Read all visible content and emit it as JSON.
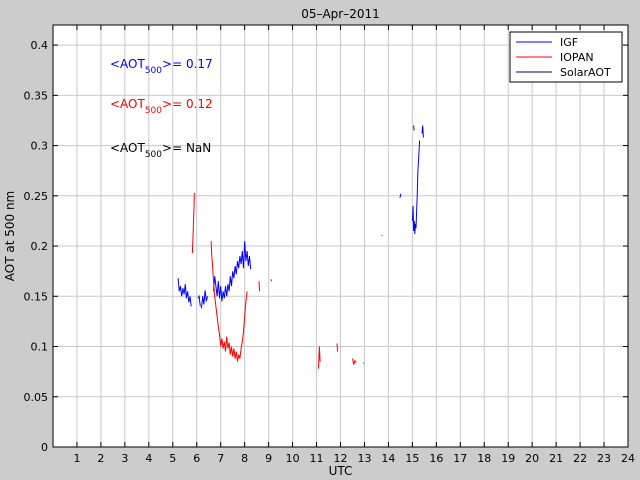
{
  "chart_data": {
    "type": "line",
    "title": "05–Apr–2011",
    "xlabel": "UTC",
    "ylabel": "AOT at 500 nm",
    "xlim": [
      0,
      24
    ],
    "ylim": [
      0,
      0.42
    ],
    "grid": true,
    "legend_position": "top-right",
    "xticks": [
      1,
      2,
      3,
      4,
      5,
      6,
      7,
      8,
      9,
      10,
      11,
      12,
      13,
      14,
      15,
      16,
      17,
      18,
      19,
      20,
      21,
      22,
      23,
      24
    ],
    "xtick_labels": [
      "1",
      "2",
      "3",
      "4",
      "5",
      "6",
      "7",
      "8",
      "9",
      "10",
      "11",
      "12",
      "13",
      "14",
      "15",
      "16",
      "17",
      "18",
      "19",
      "20",
      "21",
      "22",
      "23",
      "24"
    ],
    "yticks": [
      0,
      0.05,
      0.1,
      0.15,
      0.2,
      0.25,
      0.3,
      0.35,
      0.4
    ],
    "ytick_labels": [
      "0",
      "0.05",
      "0.1",
      "0.15",
      "0.2",
      "0.25",
      "0.3",
      "0.35",
      "0.4"
    ],
    "annotations": [
      {
        "prefix": "<AOT",
        "sub": "500",
        "suffix": ">= 0.17",
        "color": "#0000ff"
      },
      {
        "prefix": "<AOT",
        "sub": "500",
        "suffix": ">= 0.12",
        "color": "#ff0000"
      },
      {
        "prefix": "<AOT",
        "sub": "500",
        "suffix": ">=  NaN",
        "color": "#000000"
      }
    ],
    "series": [
      {
        "name": "IGF",
        "color": "#0000ff",
        "segments": [
          [
            [
              5.22,
              0.168
            ],
            [
              5.27,
              0.155
            ],
            [
              5.32,
              0.16
            ],
            [
              5.37,
              0.15
            ],
            [
              5.42,
              0.158
            ],
            [
              5.47,
              0.152
            ],
            [
              5.52,
              0.162
            ],
            [
              5.57,
              0.148
            ],
            [
              5.62,
              0.155
            ],
            [
              5.67,
              0.144
            ],
            [
              5.72,
              0.15
            ],
            [
              5.77,
              0.14
            ]
          ],
          [
            [
              6.05,
              0.148
            ],
            [
              6.1,
              0.15
            ],
            [
              6.15,
              0.14
            ]
          ],
          [
            [
              6.2,
              0.138
            ],
            [
              6.25,
              0.15
            ],
            [
              6.3,
              0.142
            ],
            [
              6.35,
              0.156
            ],
            [
              6.4,
              0.145
            ],
            [
              6.45,
              0.15
            ]
          ],
          [
            [
              6.7,
              0.155
            ],
            [
              6.75,
              0.17
            ],
            [
              6.8,
              0.16
            ],
            [
              6.85,
              0.15
            ],
            [
              6.9,
              0.165
            ],
            [
              6.95,
              0.148
            ],
            [
              7.0,
              0.16
            ],
            [
              7.05,
              0.145
            ],
            [
              7.1,
              0.155
            ],
            [
              7.15,
              0.148
            ],
            [
              7.2,
              0.16
            ],
            [
              7.25,
              0.15
            ],
            [
              7.3,
              0.162
            ],
            [
              7.35,
              0.155
            ],
            [
              7.4,
              0.17
            ],
            [
              7.45,
              0.16
            ],
            [
              7.5,
              0.175
            ],
            [
              7.55,
              0.168
            ],
            [
              7.6,
              0.18
            ],
            [
              7.65,
              0.172
            ],
            [
              7.7,
              0.185
            ],
            [
              7.75,
              0.178
            ],
            [
              7.8,
              0.19
            ],
            [
              7.85,
              0.182
            ],
            [
              7.9,
              0.195
            ],
            [
              7.95,
              0.178
            ],
            [
              8.0,
              0.205
            ],
            [
              8.05,
              0.185
            ],
            [
              8.1,
              0.195
            ],
            [
              8.15,
              0.18
            ],
            [
              8.2,
              0.19
            ],
            [
              8.25,
              0.177
            ]
          ],
          [
            [
              14.48,
              0.248
            ],
            [
              14.52,
              0.252
            ]
          ],
          [
            [
              15.0,
              0.225
            ],
            [
              15.03,
              0.24
            ],
            [
              15.05,
              0.215
            ],
            [
              15.08,
              0.225
            ],
            [
              15.1,
              0.212
            ],
            [
              15.13,
              0.222
            ],
            [
              15.15,
              0.218
            ],
            [
              15.2,
              0.25
            ],
            [
              15.23,
              0.275
            ],
            [
              15.27,
              0.29
            ],
            [
              15.3,
              0.305
            ]
          ],
          [
            [
              15.4,
              0.312
            ],
            [
              15.43,
              0.32
            ],
            [
              15.46,
              0.308
            ]
          ],
          [
            [
              15.05,
              0.32
            ],
            [
              15.07,
              0.315
            ]
          ]
        ]
      },
      {
        "name": "IOPAN",
        "color": "#ff0000",
        "segments": [
          [
            [
              5.82,
              0.193
            ],
            [
              5.85,
              0.215
            ],
            [
              5.88,
              0.235
            ],
            [
              5.9,
              0.253
            ]
          ],
          [
            [
              6.6,
              0.205
            ],
            [
              6.63,
              0.19
            ],
            [
              6.66,
              0.18
            ],
            [
              6.7,
              0.165
            ],
            [
              6.75,
              0.15
            ],
            [
              6.8,
              0.14
            ],
            [
              6.85,
              0.13
            ],
            [
              6.9,
              0.12
            ],
            [
              6.95,
              0.112
            ],
            [
              7.0,
              0.1
            ],
            [
              7.05,
              0.108
            ],
            [
              7.1,
              0.098
            ],
            [
              7.15,
              0.105
            ],
            [
              7.2,
              0.095
            ],
            [
              7.25,
              0.11
            ],
            [
              7.3,
              0.098
            ],
            [
              7.35,
              0.104
            ],
            [
              7.4,
              0.092
            ],
            [
              7.45,
              0.1
            ],
            [
              7.5,
              0.09
            ],
            [
              7.55,
              0.098
            ],
            [
              7.6,
              0.088
            ],
            [
              7.65,
              0.095
            ],
            [
              7.7,
              0.085
            ],
            [
              7.75,
              0.092
            ],
            [
              7.8,
              0.088
            ],
            [
              7.85,
              0.098
            ],
            [
              7.9,
              0.105
            ],
            [
              7.95,
              0.115
            ],
            [
              8.0,
              0.13
            ],
            [
              8.05,
              0.145
            ],
            [
              8.1,
              0.155
            ]
          ],
          [
            [
              8.6,
              0.165
            ],
            [
              8.62,
              0.155
            ]
          ],
          [
            [
              9.1,
              0.167
            ],
            [
              9.12,
              0.165
            ]
          ],
          [
            [
              11.08,
              0.078
            ],
            [
              11.1,
              0.09
            ],
            [
              11.12,
              0.1
            ],
            [
              11.15,
              0.085
            ]
          ],
          [
            [
              11.85,
              0.103
            ],
            [
              11.88,
              0.095
            ]
          ],
          [
            [
              12.5,
              0.088
            ],
            [
              12.55,
              0.082
            ],
            [
              12.6,
              0.086
            ],
            [
              12.65,
              0.084
            ]
          ],
          [
            [
              12.95,
              0.084
            ],
            [
              12.98,
              0.083
            ]
          ],
          [
            [
              13.72,
              0.211
            ],
            [
              13.74,
              0.21
            ]
          ]
        ]
      },
      {
        "name": "SolarAOT",
        "color": "#000080",
        "segments": []
      }
    ]
  }
}
